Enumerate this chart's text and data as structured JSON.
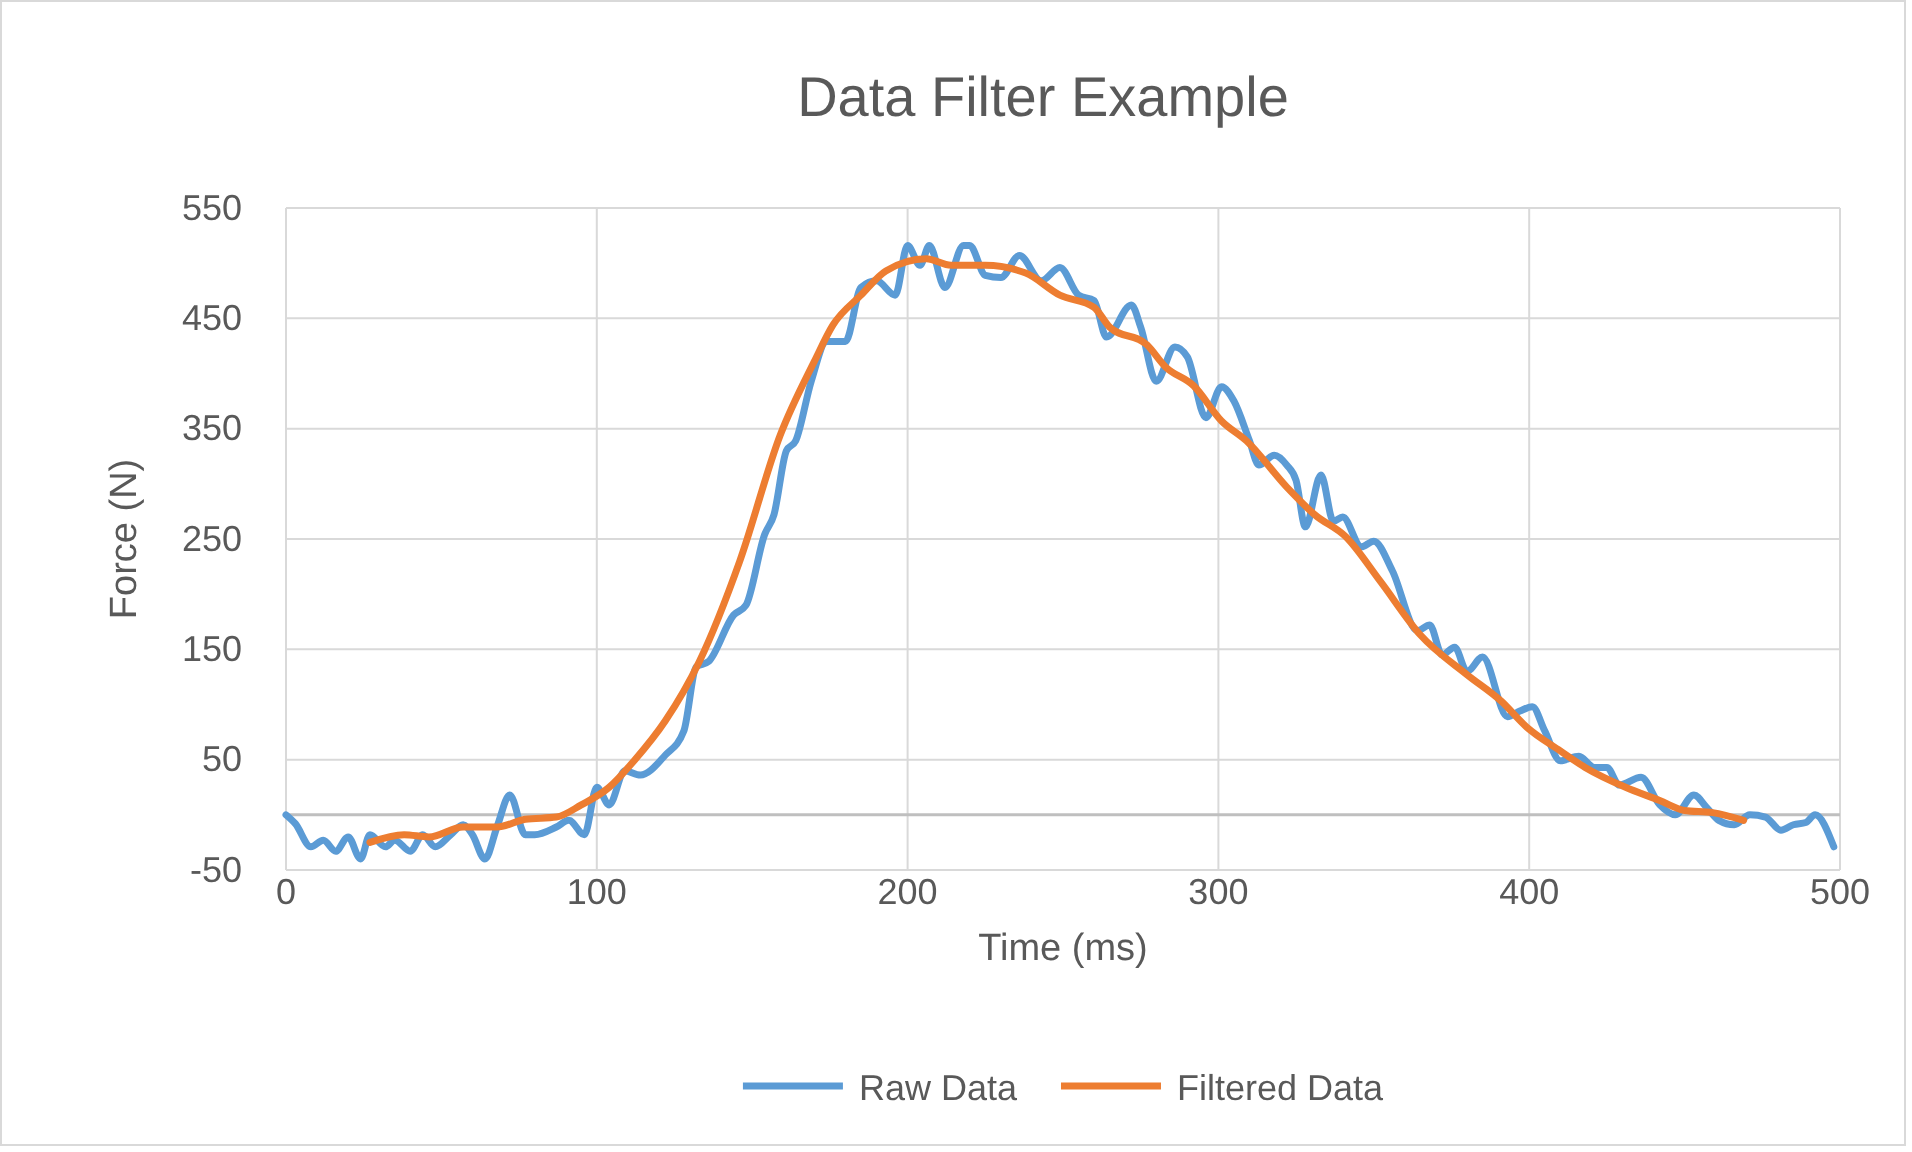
{
  "chart_data": {
    "type": "line",
    "title": "Data Filter Example",
    "xlabel": "Time (ms)",
    "ylabel": "Force (N)",
    "xlim": [
      0,
      500
    ],
    "xticks": [
      0,
      100,
      200,
      300,
      400,
      500
    ],
    "ylim": [
      -50,
      550
    ],
    "yticks": [
      -50,
      50,
      150,
      250,
      350,
      450,
      550
    ],
    "grid": true,
    "legend": "bottom",
    "marker": "none",
    "line_style": "solid",
    "series": [
      {
        "name": "Raw Data",
        "color": "#5b9bd5",
        "x": [
          0,
          3,
          8,
          12,
          16,
          20,
          24,
          27,
          32,
          35,
          40,
          44,
          48,
          53,
          57,
          60,
          64,
          68,
          72,
          77,
          80,
          87,
          91,
          96,
          100,
          104,
          109,
          114,
          122,
          128,
          132,
          136,
          144,
          148,
          154,
          157,
          161,
          164,
          169,
          174,
          180,
          185,
          190,
          196,
          200,
          204,
          207,
          212,
          218,
          220,
          225,
          230,
          236,
          243,
          249,
          255,
          260,
          264,
          272,
          275,
          280,
          286,
          290,
          296,
          301,
          305,
          310,
          313,
          318,
          322,
          325,
          328,
          333,
          337,
          340,
          346,
          350,
          356,
          364,
          368,
          372,
          376,
          380,
          385,
          393,
          397,
          401,
          405,
          410,
          416,
          421,
          425,
          429,
          436,
          442,
          447,
          453,
          457,
          461,
          466,
          471,
          476,
          481,
          485,
          489,
          492,
          498
        ],
        "values": [
          0,
          -8,
          -29,
          -23,
          -33,
          -20,
          -40,
          -18,
          -29,
          -23,
          -33,
          -18,
          -29,
          -18,
          -9,
          -18,
          -40,
          -10,
          18,
          -18,
          -18,
          -11,
          -5,
          -18,
          25,
          9,
          40,
          36,
          54,
          76,
          134,
          139,
          181,
          190,
          254,
          272,
          330,
          339,
          393,
          429,
          429,
          478,
          484,
          471,
          516,
          498,
          516,
          478,
          516,
          516,
          489,
          487,
          507,
          484,
          496,
          471,
          466,
          433,
          462,
          442,
          393,
          424,
          415,
          360,
          388,
          375,
          339,
          317,
          326,
          317,
          303,
          261,
          308,
          266,
          270,
          243,
          248,
          221,
          167,
          172,
          145,
          152,
          130,
          143,
          89,
          94,
          98,
          76,
          49,
          53,
          43,
          43,
          27,
          34,
          9,
          0,
          18,
          7,
          -5,
          -9,
          0,
          -2,
          -14,
          -9,
          -7,
          0,
          -29
        ]
      },
      {
        "name": "Filtered Data",
        "color": "#ed7d31",
        "x": [
          27,
          38,
          46,
          57,
          68,
          77,
          87,
          95,
          104,
          112,
          122,
          133,
          146,
          159,
          170,
          176,
          185,
          193,
          206,
          214,
          225,
          238,
          249,
          260,
          265,
          277,
          283,
          292,
          301,
          309,
          322,
          331,
          341,
          352,
          365,
          380,
          391,
          399,
          410,
          418,
          431,
          442,
          450,
          459,
          469
        ],
        "values": [
          -25,
          -18,
          -20,
          -11,
          -11,
          -4,
          -2,
          9,
          25,
          49,
          85,
          139,
          230,
          344,
          411,
          444,
          471,
          493,
          504,
          498,
          498,
          491,
          471,
          460,
          442,
          426,
          406,
          389,
          357,
          339,
          297,
          272,
          252,
          212,
          163,
          127,
          103,
          80,
          58,
          43,
          25,
          13,
          4,
          2,
          -5
        ]
      }
    ]
  }
}
